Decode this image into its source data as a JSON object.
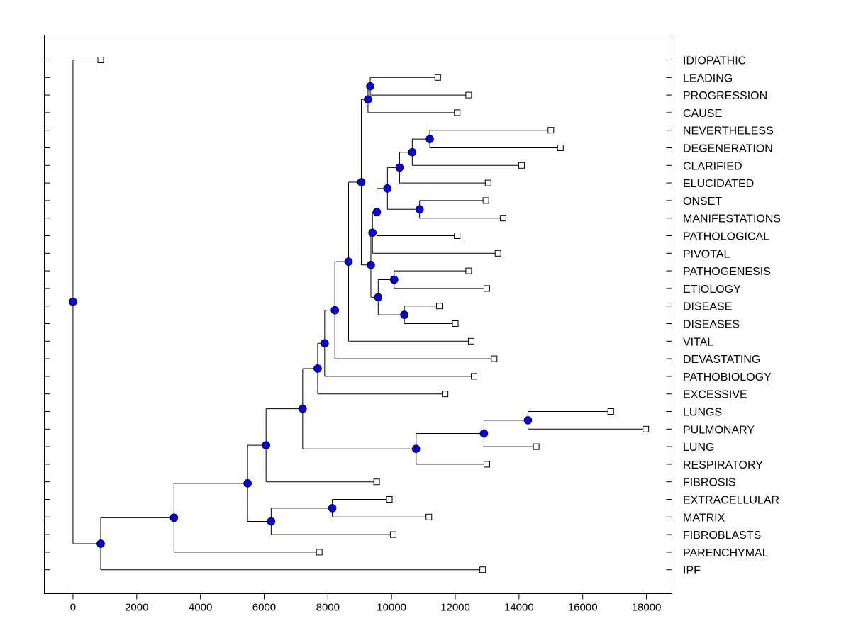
{
  "chart_data": {
    "type": "dendrogram",
    "orientation": "horizontal",
    "title": "",
    "xlabel": "",
    "ylabel": "",
    "xlim": [
      -900,
      18800
    ],
    "x_ticks": [
      0,
      2000,
      4000,
      6000,
      8000,
      10000,
      12000,
      14000,
      16000,
      18000
    ],
    "x_tick_labels": [
      "0",
      "2000",
      "4000",
      "6000",
      "8000",
      "10000",
      "12000",
      "14000",
      "16000",
      "18000"
    ],
    "grid": false,
    "leaves": [
      {
        "label": "IDIOPATHIC",
        "x": 870
      },
      {
        "label": "LEADING",
        "x": 11450
      },
      {
        "label": "PROGRESSION",
        "x": 12420
      },
      {
        "label": "CAUSE",
        "x": 12060
      },
      {
        "label": "NEVERTHELESS",
        "x": 15000
      },
      {
        "label": "DEGENERATION",
        "x": 15300
      },
      {
        "label": "CLARIFIED",
        "x": 14080
      },
      {
        "label": "ELUCIDATED",
        "x": 13030
      },
      {
        "label": "ONSET",
        "x": 12960
      },
      {
        "label": "MANIFESTATIONS",
        "x": 13500
      },
      {
        "label": "PATHOLOGICAL",
        "x": 12060
      },
      {
        "label": "PIVOTAL",
        "x": 13340
      },
      {
        "label": "PATHOGENESIS",
        "x": 12420
      },
      {
        "label": "ETIOLOGY",
        "x": 12990
      },
      {
        "label": "DISEASE",
        "x": 11500
      },
      {
        "label": "DISEASES",
        "x": 12000
      },
      {
        "label": "VITAL",
        "x": 12500
      },
      {
        "label": "DEVASTATING",
        "x": 13220
      },
      {
        "label": "PATHOBIOLOGY",
        "x": 12590
      },
      {
        "label": "EXCESSIVE",
        "x": 11680
      },
      {
        "label": "LUNGS",
        "x": 16880
      },
      {
        "label": "PULMONARY",
        "x": 17980
      },
      {
        "label": "LUNG",
        "x": 14540
      },
      {
        "label": "RESPIRATORY",
        "x": 12990
      },
      {
        "label": "FIBROSIS",
        "x": 9530
      },
      {
        "label": "EXTRACELLULAR",
        "x": 9930
      },
      {
        "label": "MATRIX",
        "x": 11170
      },
      {
        "label": "FIBROBLASTS",
        "x": 10050
      },
      {
        "label": "PARENCHYMAL",
        "x": 7730
      },
      {
        "label": "IPF",
        "x": 12860
      }
    ],
    "merges": [
      {
        "id": "m1",
        "x": 9330,
        "children": [
          "L1",
          "L2"
        ]
      },
      {
        "id": "m2",
        "x": 9260,
        "children": [
          "m1",
          "L3"
        ]
      },
      {
        "id": "m3",
        "x": 11200,
        "children": [
          "L4",
          "L5"
        ]
      },
      {
        "id": "m4",
        "x": 10650,
        "children": [
          "m3",
          "L6"
        ]
      },
      {
        "id": "m5",
        "x": 10250,
        "children": [
          "m4",
          "L7"
        ]
      },
      {
        "id": "m6",
        "x": 10880,
        "children": [
          "L8",
          "L9"
        ]
      },
      {
        "id": "m7",
        "x": 9870,
        "children": [
          "m5",
          "m6"
        ]
      },
      {
        "id": "m8",
        "x": 9540,
        "children": [
          "m7",
          "L10"
        ]
      },
      {
        "id": "m9",
        "x": 9400,
        "children": [
          "m8",
          "L11"
        ]
      },
      {
        "id": "m10",
        "x": 10080,
        "children": [
          "L12",
          "L13"
        ]
      },
      {
        "id": "m11",
        "x": 10400,
        "children": [
          "L14",
          "L15"
        ]
      },
      {
        "id": "m12",
        "x": 9580,
        "children": [
          "m10",
          "m11"
        ]
      },
      {
        "id": "m13",
        "x": 9350,
        "children": [
          "m9",
          "m12"
        ]
      },
      {
        "id": "m14",
        "x": 9050,
        "children": [
          "m2",
          "m13"
        ]
      },
      {
        "id": "m15",
        "x": 8650,
        "children": [
          "m14",
          "L16"
        ]
      },
      {
        "id": "m16",
        "x": 8220,
        "children": [
          "m15",
          "L17"
        ]
      },
      {
        "id": "m17",
        "x": 7900,
        "children": [
          "m16",
          "L18"
        ]
      },
      {
        "id": "m18",
        "x": 7680,
        "children": [
          "m17",
          "L19"
        ]
      },
      {
        "id": "m19",
        "x": 14280,
        "children": [
          "L20",
          "L21"
        ]
      },
      {
        "id": "m20",
        "x": 12900,
        "children": [
          "m19",
          "L22"
        ]
      },
      {
        "id": "m21",
        "x": 10770,
        "children": [
          "m20",
          "L23"
        ]
      },
      {
        "id": "m22",
        "x": 7210,
        "children": [
          "m18",
          "m21"
        ]
      },
      {
        "id": "m23",
        "x": 6060,
        "children": [
          "m22",
          "L24"
        ]
      },
      {
        "id": "m24",
        "x": 8140,
        "children": [
          "L25",
          "L26"
        ]
      },
      {
        "id": "m25",
        "x": 6220,
        "children": [
          "m24",
          "L27"
        ]
      },
      {
        "id": "m26",
        "x": 5480,
        "children": [
          "m23",
          "m25"
        ]
      },
      {
        "id": "m27",
        "x": 3170,
        "children": [
          "m26",
          "L28"
        ]
      },
      {
        "id": "m28",
        "x": 870,
        "children": [
          "m27",
          "L29"
        ]
      },
      {
        "id": "m29",
        "x": 0,
        "children": [
          "L0",
          "m28"
        ]
      }
    ],
    "colors": {
      "node_fill": "#0000ff",
      "node_stroke": "#000000",
      "leaf_fill": "#ffffff",
      "line": "#000000",
      "frame": "#000000",
      "background": "#ffffff"
    }
  }
}
